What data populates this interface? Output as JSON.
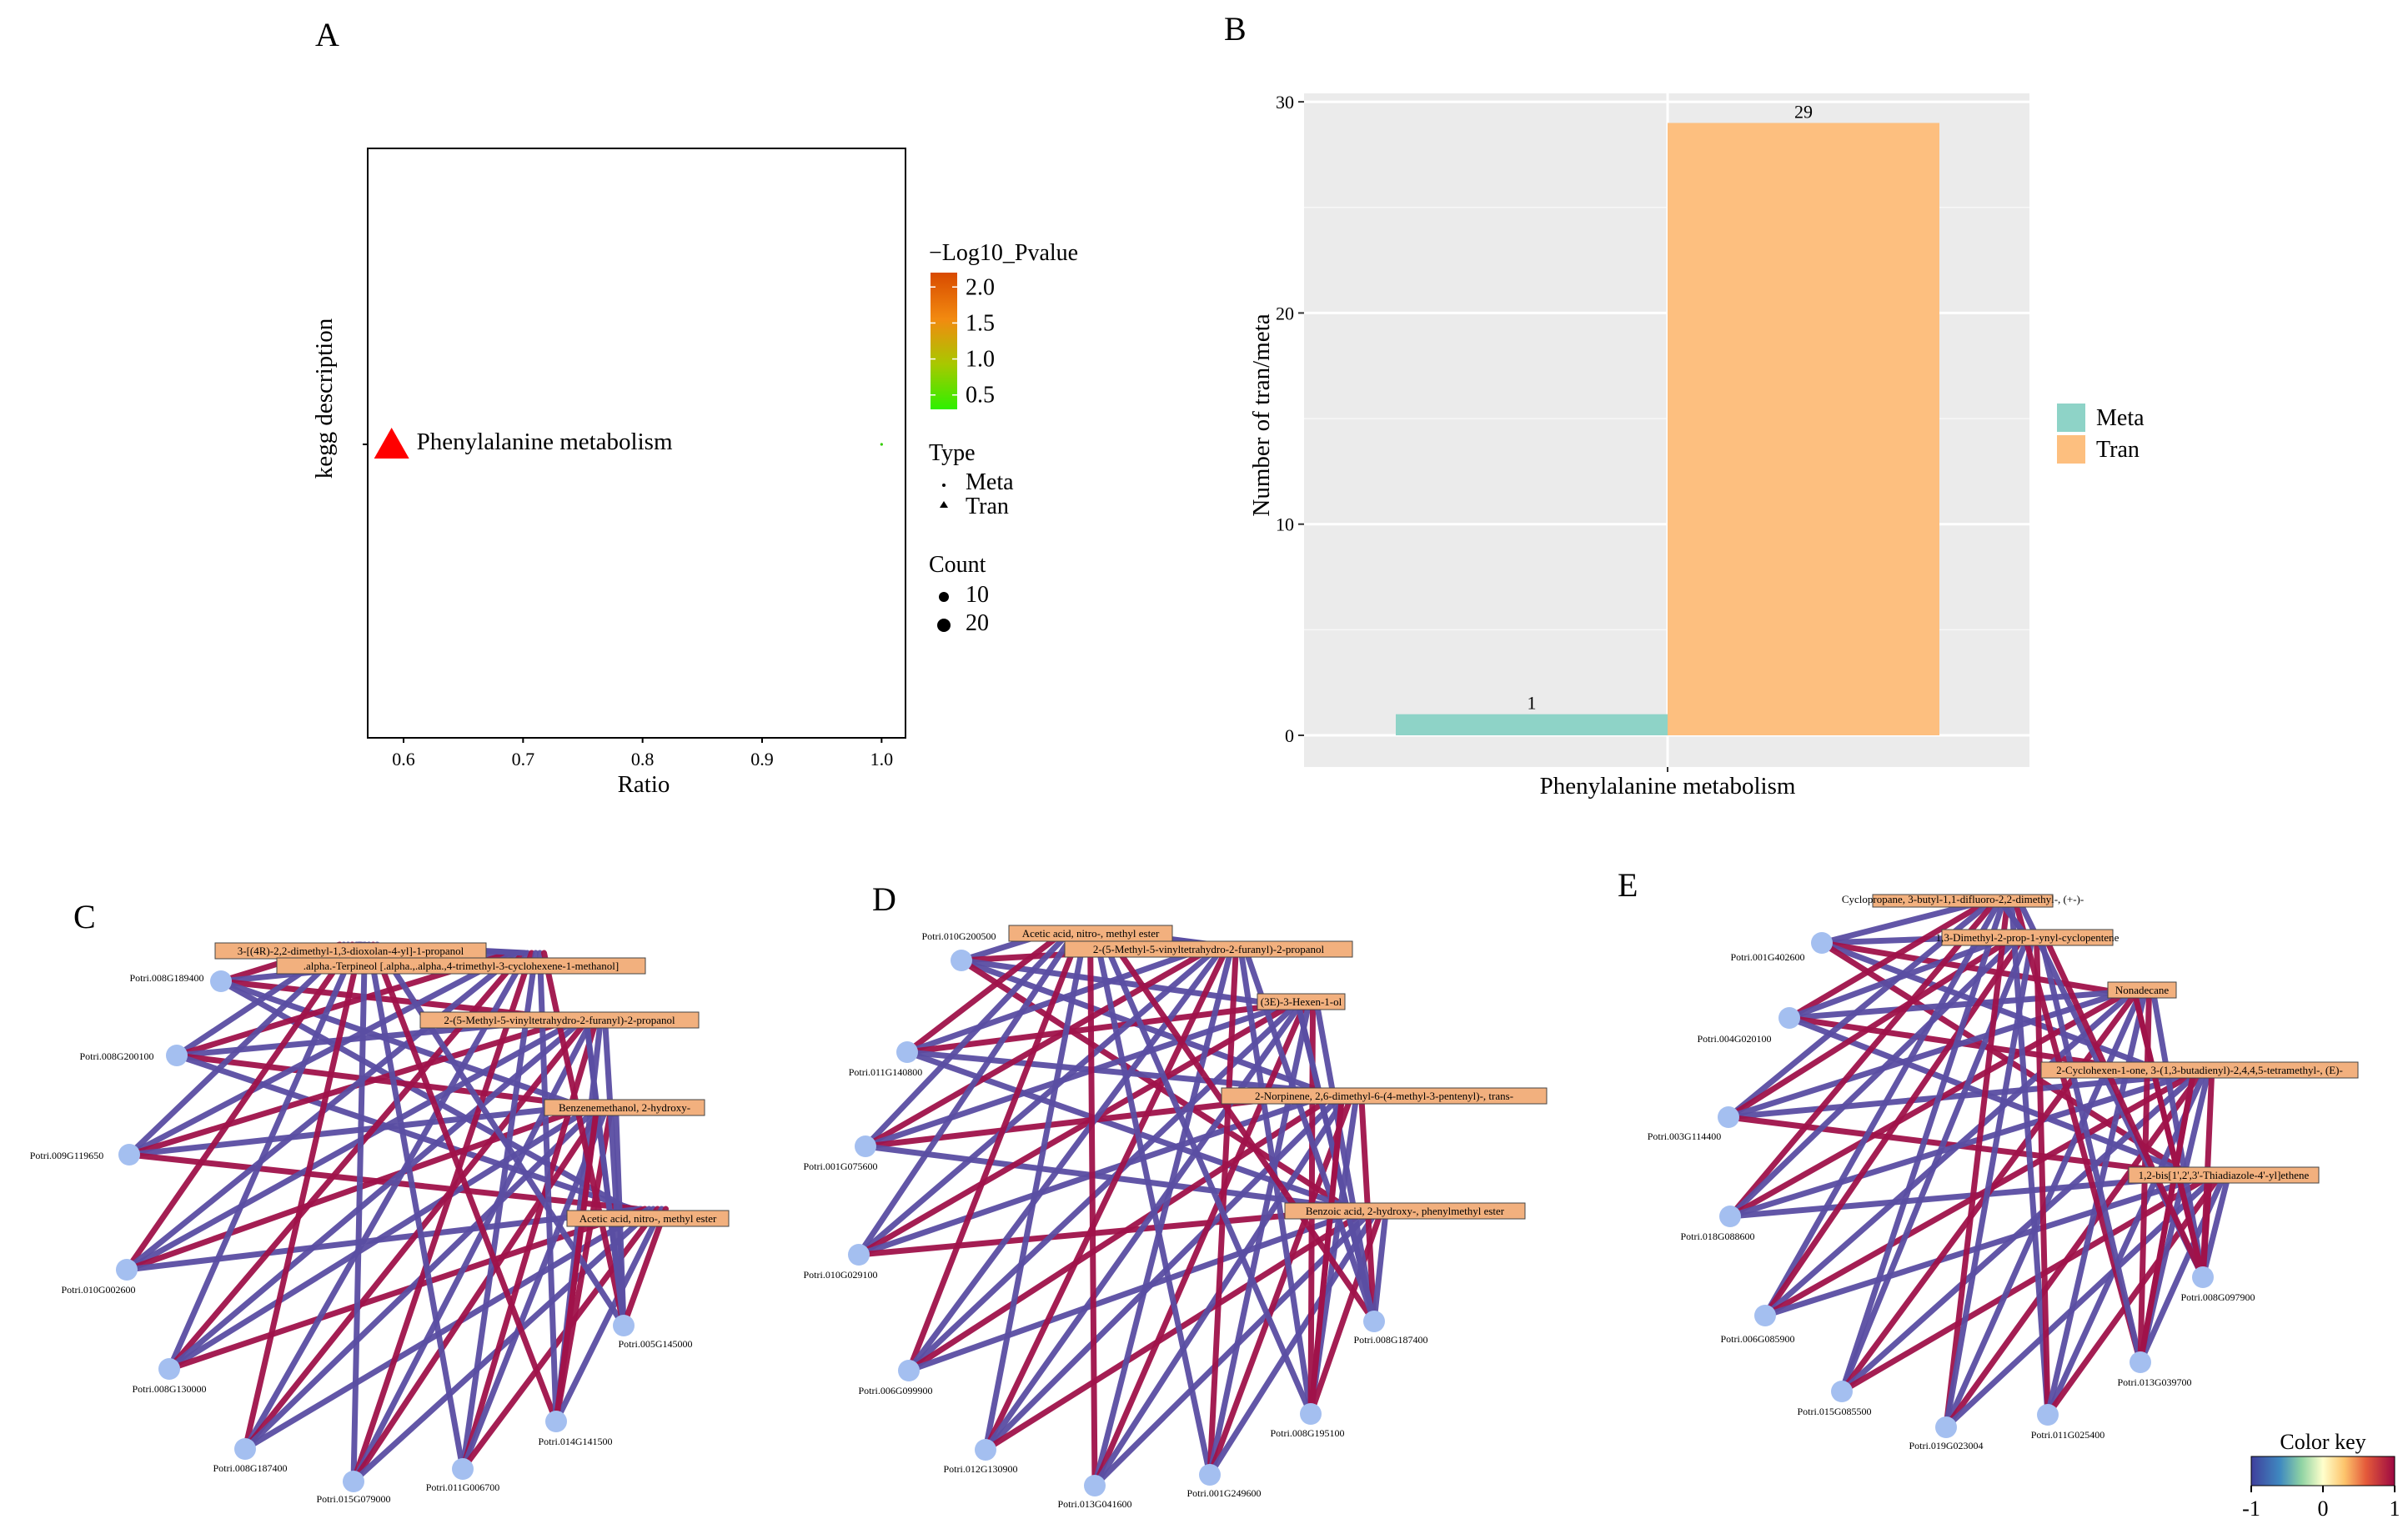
{
  "panels": {
    "a": "A",
    "b": "B",
    "c": "C",
    "d": "D",
    "e": "E"
  },
  "chart_data": [
    {
      "id": "A",
      "type": "scatter",
      "xlabel": "Ratio",
      "ylabel": "kegg description",
      "x_ticks": [
        "0.6",
        "0.7",
        "0.8",
        "0.9",
        "1.0"
      ],
      "xlim": [
        0.57,
        1.02
      ],
      "y_categories": [
        "Phenylalanine metabolism"
      ],
      "points": [
        {
          "name": "Phenylalanine metabolism",
          "type": "Tran",
          "x": 0.59,
          "count": 29,
          "log10p": 2.1,
          "color": "#ff0000"
        },
        {
          "name": "Phenylalanine metabolism",
          "type": "Meta",
          "x": 1.0,
          "count": 1,
          "log10p": 0.5,
          "color": "#33cc00"
        }
      ],
      "legend": {
        "pvalue_title": "−Log10_Pvalue",
        "pvalue_ticks": [
          "2.0",
          "1.5",
          "1.0",
          "0.5"
        ],
        "type_title": "Type",
        "types": [
          "Meta",
          "Tran"
        ],
        "count_title": "Count",
        "counts": [
          "10",
          "20"
        ]
      }
    },
    {
      "id": "B",
      "type": "bar",
      "categories": [
        "Phenylalanine metabolism"
      ],
      "series": [
        {
          "name": "Meta",
          "values": [
            1
          ],
          "color": "#8ed3c7"
        },
        {
          "name": "Tran",
          "values": [
            29
          ],
          "color": "#fdbf7f"
        }
      ],
      "data_labels": [
        "1",
        "29"
      ],
      "xlabel": "Phenylalanine metabolism",
      "ylabel": "Number of tran/meta",
      "y_ticks": [
        "0",
        "10",
        "20",
        "30"
      ],
      "ylim": [
        -1.5,
        30.4
      ]
    },
    {
      "id": "C",
      "type": "network",
      "genes": [
        "Potri.008G189400",
        "Potri.008G200100",
        "Potri.009G119650",
        "Potri.010G002600",
        "Potri.008G130000",
        "Potri.008G187400",
        "Potri.015G079000",
        "Potri.011G006700",
        "Potri.014G141500",
        "Potri.005G145000"
      ],
      "metabolites": [
        "3-[(4R)-2,2-dimethyl-1,3-dioxolan-4-yl]-1-propanol",
        ".alpha.-Terpineol [.alpha.,.alpha.,4-trimethyl-3-cyclohexene-1-methanol]",
        "2-(5-Methyl-5-vinyltetrahydro-2-furanyl)-2-propanol",
        "Benzenemethanol, 2-hydroxy-",
        "Acetic acid, nitro-, methyl ester"
      ]
    },
    {
      "id": "D",
      "type": "network",
      "genes": [
        "Potri.010G200500",
        "Potri.011G140800",
        "Potri.001G075600",
        "Potri.010G029100",
        "Potri.006G099900",
        "Potri.012G130900",
        "Potri.013G041600",
        "Potri.001G249600",
        "Potri.008G195100",
        "Potri.008G187400"
      ],
      "metabolites": [
        "Acetic acid, nitro-, methyl ester",
        "2-(5-Methyl-5-vinyltetrahydro-2-furanyl)-2-propanol",
        "(3E)-3-Hexen-1-ol",
        "2-Norpinene, 2,6-dimethyl-6-(4-methyl-3-pentenyl)-, trans-",
        "Benzoic acid, 2-hydroxy-, phenylmethyl ester"
      ]
    },
    {
      "id": "E",
      "type": "network",
      "genes": [
        "Potri.001G402600",
        "Potri.004G020100",
        "Potri.003G114400",
        "Potri.018G088600",
        "Potri.006G085900",
        "Potri.015G085500",
        "Potri.019G023004",
        "Potri.011G025400",
        "Potri.013G039700",
        "Potri.008G097900"
      ],
      "metabolites": [
        "Cyclopropane, 3-butyl-1,1-difluoro-2,2-dimethyl-, (+-)-",
        "1,3-Dimethyl-2-prop-1-ynyl-cyclopentene",
        "Nonadecane",
        "2-Cyclohexen-1-one, 3-(1,3-butadienyl)-2,4,4,5-tetramethyl-, (E)-",
        "1,2-bis[1',2',3'-Thiadiazole-4'-yl]ethene"
      ],
      "color_key": {
        "title": "Color key",
        "ticks": [
          "-1",
          "0",
          "1"
        ]
      }
    }
  ],
  "colors": {
    "negative": "#5a4ea3",
    "positive": "#a0124a",
    "node": "#a4bff0",
    "label_box": "#f2b07e"
  }
}
